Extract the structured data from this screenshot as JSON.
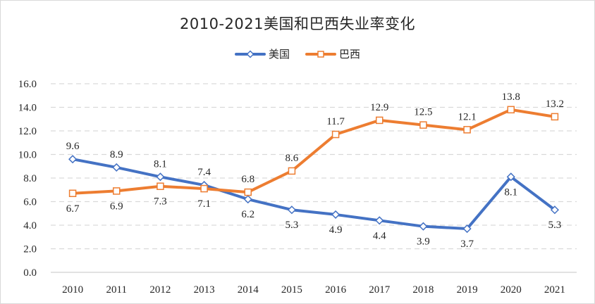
{
  "chart_data": {
    "type": "line",
    "title": "2010-2021美国和巴西失业率变化",
    "xlabel": "",
    "ylabel": "",
    "categories": [
      "2010",
      "2011",
      "2012",
      "2013",
      "2014",
      "2015",
      "2016",
      "2017",
      "2018",
      "2019",
      "2020",
      "2021"
    ],
    "series": [
      {
        "name": "美国",
        "color": "#4472c4",
        "marker": "diamond",
        "values": [
          9.6,
          8.9,
          8.1,
          7.4,
          6.2,
          5.3,
          4.9,
          4.4,
          3.9,
          3.7,
          8.1,
          5.3
        ],
        "labels": [
          "9.6",
          "8.9",
          "8.1",
          "7.4",
          "6.2",
          "5.3",
          "4.9",
          "4.4",
          "3.9",
          "3.7",
          "8.1",
          "5.3"
        ]
      },
      {
        "name": "巴西",
        "color": "#ed7d31",
        "marker": "square",
        "values": [
          6.7,
          6.9,
          7.3,
          7.1,
          6.8,
          8.6,
          11.7,
          12.9,
          12.5,
          12.1,
          13.8,
          13.2
        ],
        "labels": [
          "6.7",
          "6.9",
          "7.3",
          "7.1",
          "6.8",
          "8.6",
          "11.7",
          "12.9",
          "12.5",
          "12.1",
          "13.8",
          "13.2"
        ]
      }
    ],
    "ylim": [
      0,
      16
    ],
    "yticks": [
      "0.0",
      "2.0",
      "4.0",
      "6.0",
      "8.0",
      "10.0",
      "12.0",
      "14.0",
      "16.0"
    ],
    "grid": true,
    "legend_position": "top-center"
  }
}
